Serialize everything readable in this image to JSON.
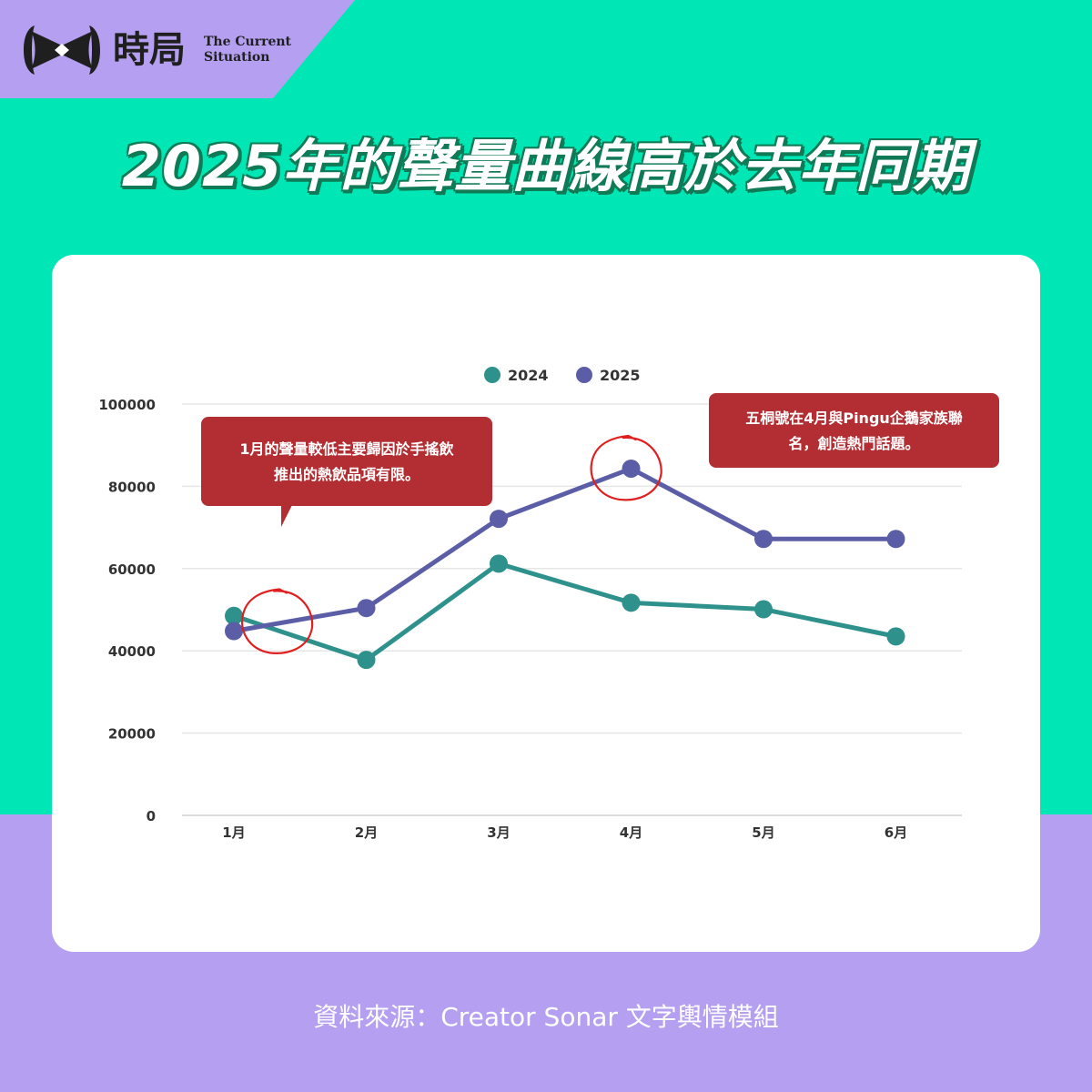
{
  "colors": {
    "background_top": "#00e6b4",
    "background_bottom": "#b49ff0",
    "logo_tab": "#b49ff0",
    "card": "#ffffff",
    "series_2024": "#2e918c",
    "series_2025": "#5b5ea6",
    "callout": "#b32e33",
    "highlight_circle": "#e02020",
    "headline_shadow": "#0f7a55"
  },
  "brand": {
    "logo_icon": "bowtie-mark-icon",
    "name_zh": "時局",
    "name_en_line1": "The Current",
    "name_en_line2": "Situation"
  },
  "headline": "2025年的聲量曲線高於去年同期",
  "callouts": {
    "january": {
      "line1": "1月的聲量較低主要歸因於手搖飲",
      "line2": "推出的熱飲品項有限。"
    },
    "april": {
      "line1": "五桐號在4月與Pingu企鵝家族聯",
      "line2": "名，創造熱門話題。"
    }
  },
  "chart_data": {
    "type": "line",
    "categories": [
      "1月",
      "2月",
      "3月",
      "4月",
      "5月",
      "6月"
    ],
    "series": [
      {
        "name": "2024",
        "values": [
          48500,
          37800,
          61200,
          51700,
          50100,
          43500
        ]
      },
      {
        "name": "2025",
        "values": [
          44800,
          50400,
          72100,
          84300,
          67200,
          67200
        ]
      }
    ],
    "yticks": [
      "0",
      "20000",
      "40000",
      "60000",
      "80000",
      "100000"
    ],
    "ylim": [
      0,
      100000
    ],
    "grid": true,
    "legend": "top-center",
    "highlighted_points": [
      {
        "category": "1月",
        "series": "2025"
      },
      {
        "category": "4月",
        "series": "2025"
      }
    ]
  },
  "source": "資料來源：Creator Sonar 文字輿情模組"
}
